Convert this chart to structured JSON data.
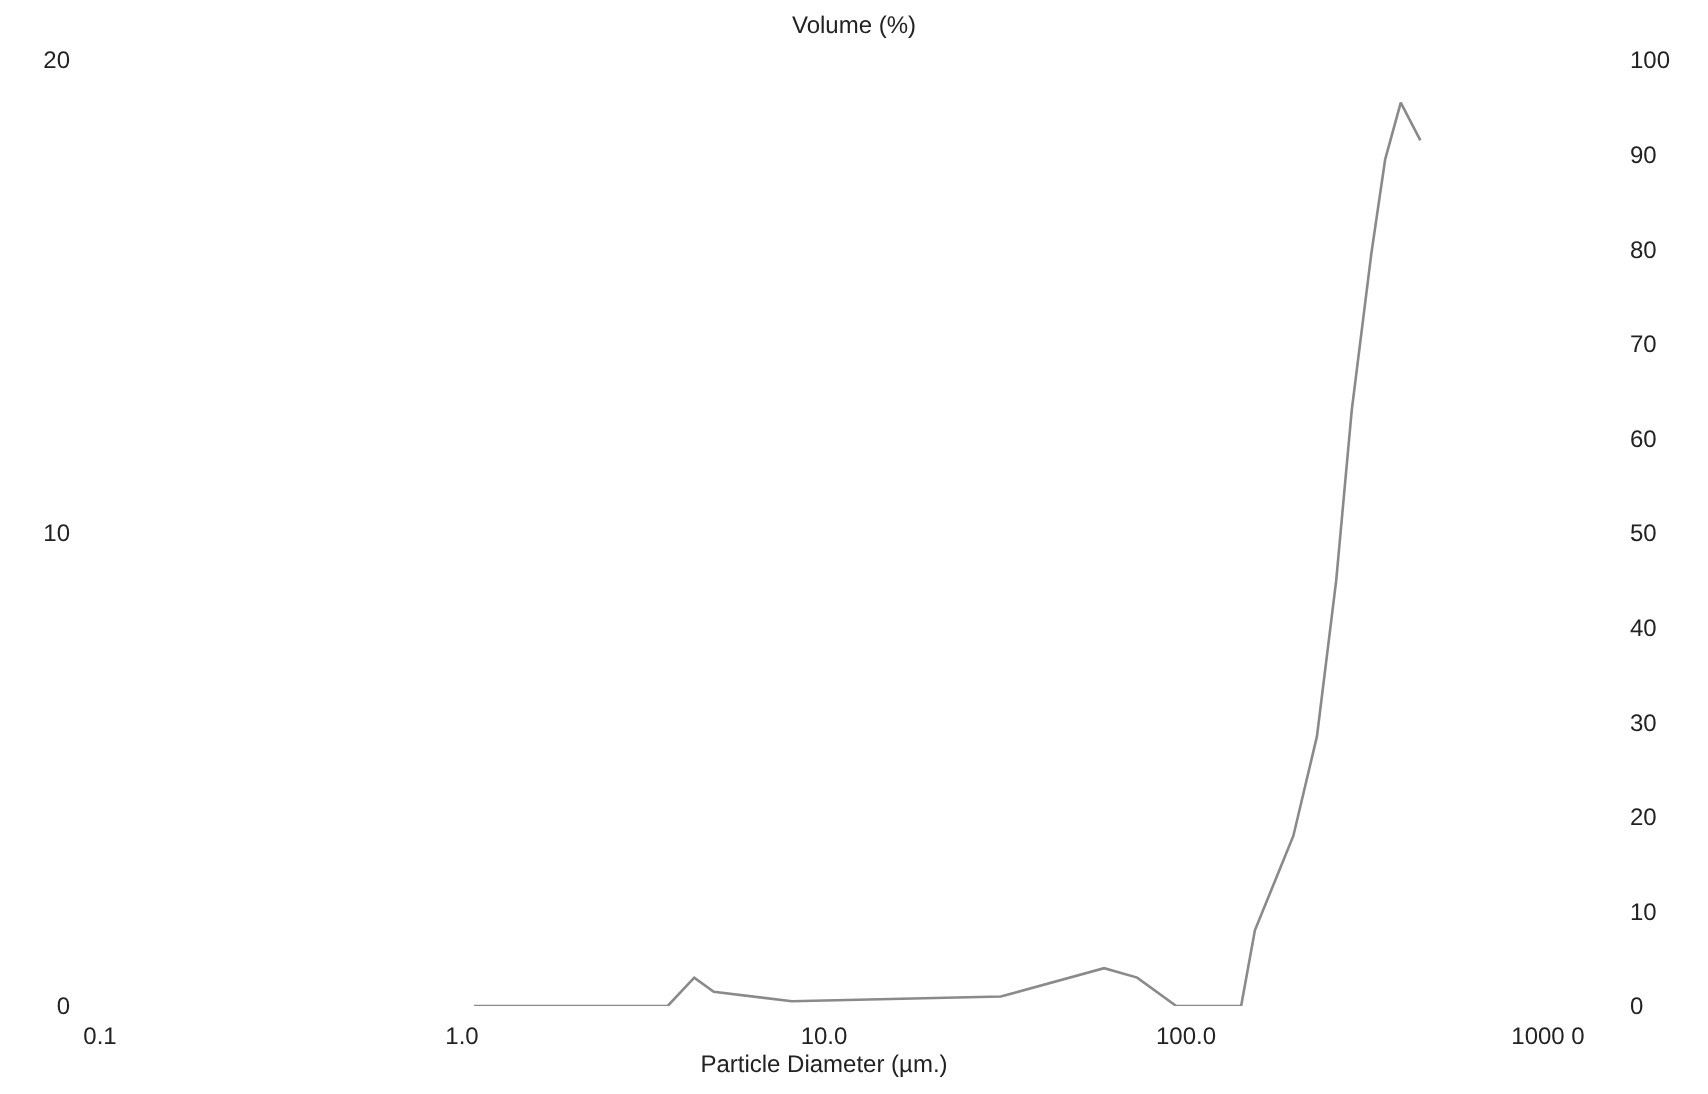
{
  "chart_data": {
    "type": "line",
    "title": "Volume (%)",
    "xlabel": "Particle Diameter (µm.)",
    "log": "x",
    "x": [
      1.08,
      3.7,
      4.38,
      4.96,
      8.15,
      30.8,
      59.4,
      73.3,
      94,
      142,
      155,
      198,
      230,
      260,
      287,
      325,
      355,
      392,
      444
    ],
    "series": [
      {
        "color": "#8a8a8a",
        "values": [
          0,
          0,
          0.6,
          0.3,
          0.1,
          0.2,
          0.8,
          0.6,
          0,
          0,
          1.6,
          3.6,
          5.7,
          9,
          12.6,
          15.9,
          17.9,
          19.1,
          18.3
        ]
      }
    ],
    "xlim": [
      0.1,
      1000
    ],
    "xticks": [
      {
        "value": 0.1,
        "label": "0.1"
      },
      {
        "value": 1,
        "label": "1.0"
      },
      {
        "value": 10,
        "label": "10.0"
      },
      {
        "value": 100,
        "label": "100.0"
      },
      {
        "value": 1000,
        "label": "1000 0"
      }
    ],
    "ylim": [
      0,
      20
    ],
    "yticks": [
      0,
      10,
      20
    ],
    "y2lim": [
      0,
      100
    ],
    "y2ticks": [
      0,
      10,
      20,
      30,
      40,
      50,
      60,
      70,
      80,
      90,
      100
    ],
    "grid": false,
    "marker": "none",
    "line_style": "solid"
  }
}
